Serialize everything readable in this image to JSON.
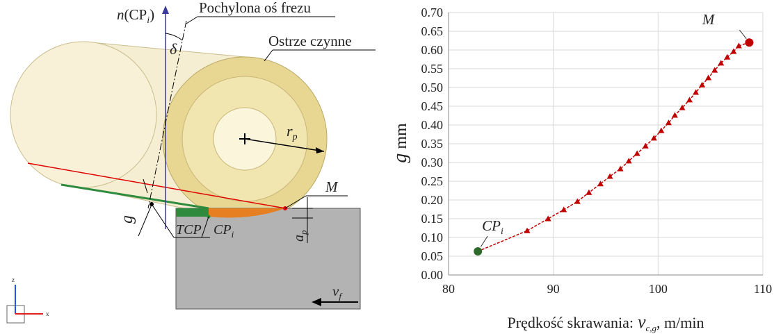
{
  "diagram": {
    "normal_label": [
      "n",
      "(CP",
      "i",
      ")"
    ],
    "axis_label": "Pochylona oś frezu",
    "edge_label": "Ostrze czynne",
    "angle": "δ",
    "radius": [
      "r",
      "p"
    ],
    "point_m": "M",
    "gap": "g",
    "tcp": "TCP",
    "contact_point": [
      "CP",
      "i"
    ],
    "depth": [
      "a",
      "p"
    ],
    "feed": [
      "v",
      "f"
    ],
    "triad": [
      "z",
      "x"
    ]
  },
  "chart_data": {
    "type": "line",
    "x_label": {
      "text": "Prędkość skrawania:",
      "symbol": "v",
      "subscript": "c,g",
      "unit": ", m/min"
    },
    "y_label": {
      "symbol": "g",
      "unit": "mm"
    },
    "xlim": [
      80,
      110
    ],
    "xticks": [
      80,
      90,
      100,
      110
    ],
    "ylim": [
      0,
      0.7
    ],
    "yticks": [
      {
        "value": 0,
        "label": "0.00"
      },
      0.05,
      {
        "value": 0.1,
        "label": "0.10"
      },
      0.15,
      {
        "value": 0.2,
        "label": "0.20"
      },
      0.25,
      {
        "value": 0.3,
        "label": "0.30"
      },
      0.35,
      {
        "value": 0.4,
        "label": "0.40"
      },
      0.45,
      {
        "value": 0.5,
        "label": "0.50"
      },
      0.55,
      {
        "value": 0.6,
        "label": "0.60"
      },
      0.65,
      {
        "value": 0.7,
        "label": "0.70"
      }
    ],
    "grid": true,
    "series": [
      {
        "color": "#c00000",
        "x": [
          87.5,
          89.5,
          91.0,
          92.3,
          93.4,
          94.5,
          95.4,
          96.4,
          97.2,
          98.0,
          98.8,
          99.6,
          100.3,
          101.0,
          101.6,
          102.3,
          103.0,
          103.6,
          104.2,
          104.8,
          105.4,
          106.0,
          106.6,
          107.2,
          107.7
        ],
        "values": [
          0.118,
          0.15,
          0.174,
          0.196,
          0.22,
          0.243,
          0.263,
          0.283,
          0.304,
          0.324,
          0.344,
          0.365,
          0.385,
          0.406,
          0.426,
          0.446,
          0.467,
          0.487,
          0.507,
          0.526,
          0.546,
          0.565,
          0.581,
          0.596,
          0.611
        ]
      }
    ],
    "annotations": [
      {
        "label": "CP",
        "subscript": "i",
        "x": 82.8,
        "y": 0.063,
        "color": "#2e6b2a"
      },
      {
        "label": "M",
        "x": 108.7,
        "y": 0.62,
        "color": "#c00000"
      }
    ]
  }
}
